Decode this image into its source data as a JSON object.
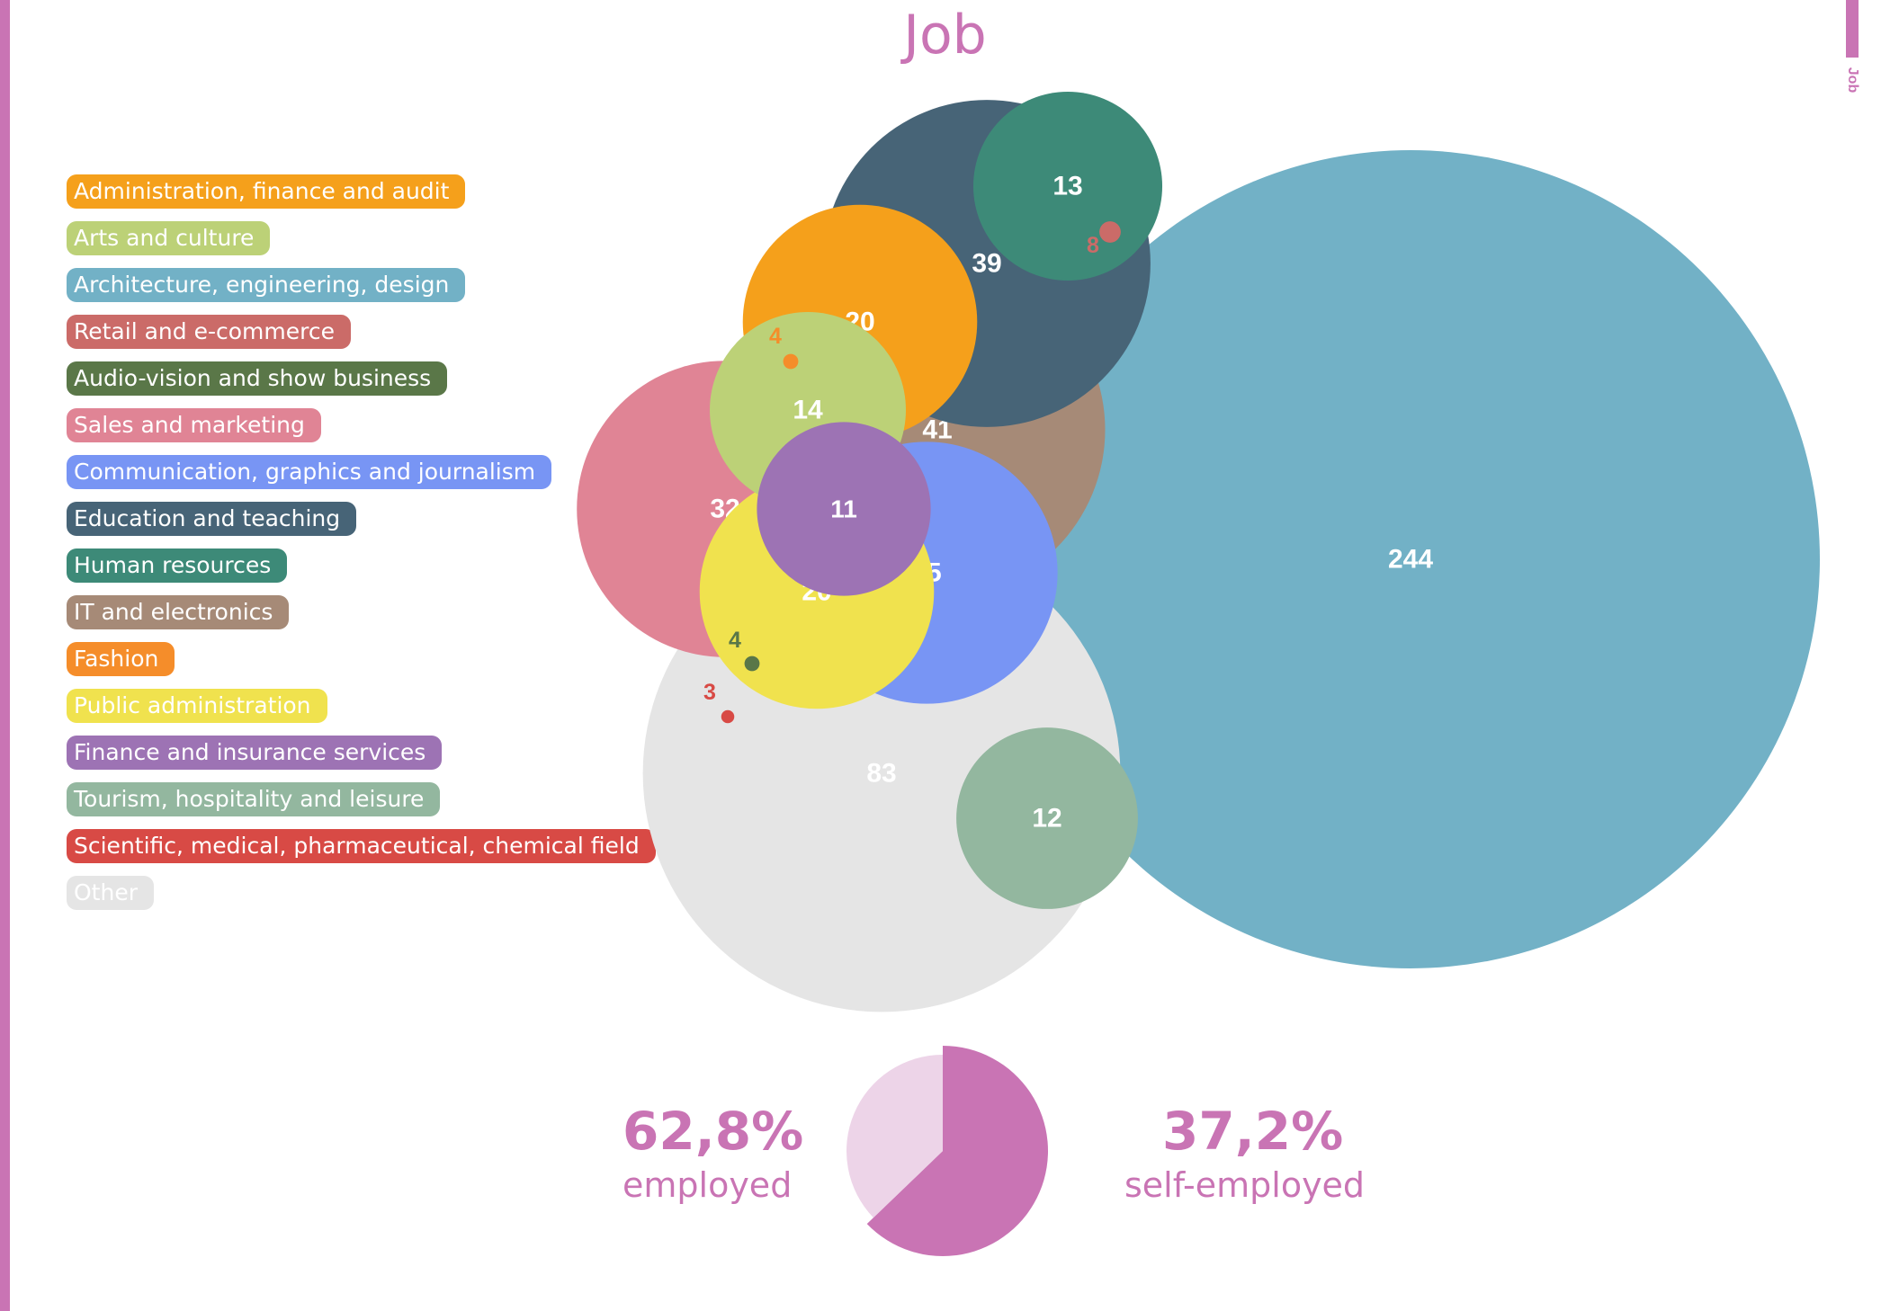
{
  "title": "Job",
  "side_tab": "Job",
  "chart_data": [
    {
      "type": "bubble",
      "categories": [
        {
          "label": "Administration, finance and audit",
          "color": "#f5a01b"
        },
        {
          "label": "Arts and culture",
          "color": "#bcd177"
        },
        {
          "label": "Architecture, engineering, design",
          "color": "#72b1c6"
        },
        {
          "label": "Retail and e-commerce",
          "color": "#cb6b68"
        },
        {
          "label": "Audio-vision and show business",
          "color": "#5a7748"
        },
        {
          "label": "Sales and marketing",
          "color": "#e08495"
        },
        {
          "label": "Communication, graphics and journalism",
          "color": "#7895f4"
        },
        {
          "label": "Education and teaching",
          "color": "#476477"
        },
        {
          "label": "Human resources",
          "color": "#3d8a78"
        },
        {
          "label": "IT and electronics",
          "color": "#a68a77"
        },
        {
          "label": "Fashion",
          "color": "#f58d2a"
        },
        {
          "label": "Public administration",
          "color": "#f0e24e"
        },
        {
          "label": "Finance and insurance services",
          "color": "#9d73b4"
        },
        {
          "label": "Tourism, hospitality and leisure",
          "color": "#93b79f"
        },
        {
          "label": "Scientific, medical, pharmaceutical, chemical field",
          "color": "#d84a45"
        },
        {
          "label": "Other",
          "color": "#e5e5e5"
        }
      ],
      "bubbles": [
        {
          "category": "Architecture, engineering, design",
          "value": 244
        },
        {
          "category": "Other",
          "value": 83
        },
        {
          "category": "IT and electronics",
          "value": 41
        },
        {
          "category": "Education and teaching",
          "value": 39
        },
        {
          "category": "Sales and marketing",
          "value": 32
        },
        {
          "category": "Communication, graphics and journalism",
          "value": 25
        },
        {
          "category": "Administration, finance and audit",
          "value": 20
        },
        {
          "category": "Public administration",
          "value": 20
        },
        {
          "category": "Arts and culture",
          "value": 14
        },
        {
          "category": "Human resources",
          "value": 13
        },
        {
          "category": "Tourism, hospitality and leisure",
          "value": 12
        },
        {
          "category": "Finance and insurance services",
          "value": 11
        },
        {
          "category": "Retail and e-commerce",
          "value": 8
        },
        {
          "category": "Fashion",
          "value": 4
        },
        {
          "category": "Audio-vision and show business",
          "value": 4
        },
        {
          "category": "Scientific, medical, pharmaceutical, chemical field",
          "value": 3
        }
      ]
    },
    {
      "type": "pie",
      "slices": [
        {
          "label": "employed",
          "value": 62.8,
          "display": "62,8%",
          "color": "#c974b4"
        },
        {
          "label": "self-employed",
          "value": 37.2,
          "display": "37,2%",
          "color": "#edd4e8"
        }
      ]
    }
  ]
}
